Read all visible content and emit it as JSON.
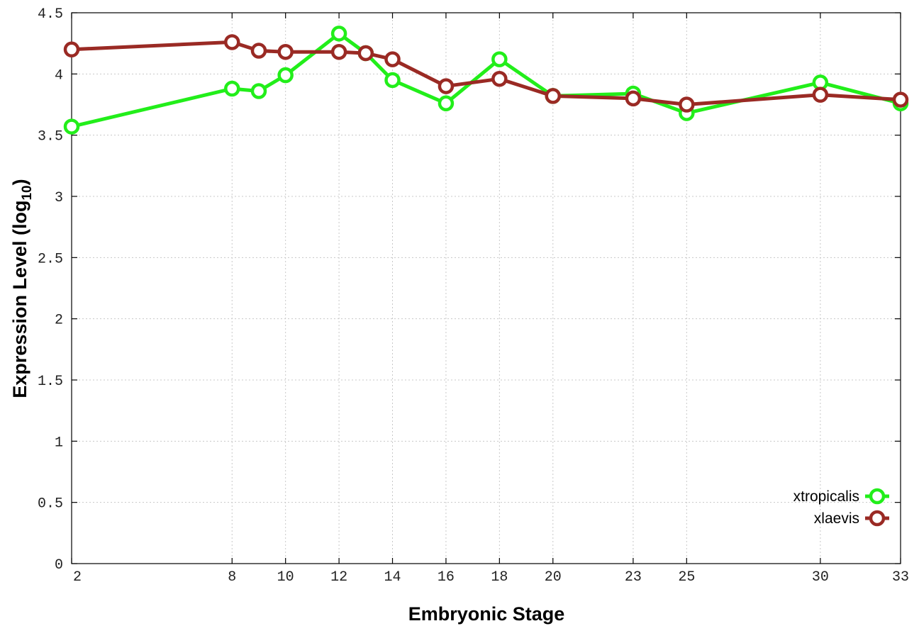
{
  "chart_data": {
    "type": "line",
    "xlabel": "Embryonic Stage",
    "ylabel": "Expression Level (log",
    "ylabel_subscript": "10",
    "ylabel_suffix": ")",
    "x": [
      2,
      8,
      9,
      10,
      12,
      13,
      14,
      16,
      18,
      20,
      23,
      25,
      30,
      33
    ],
    "xticks": [
      2,
      8,
      10,
      12,
      14,
      16,
      18,
      20,
      23,
      25,
      30,
      33
    ],
    "xlim": [
      2,
      33
    ],
    "yticks": [
      "0",
      "0.5",
      "1",
      "1.5",
      "2",
      "2.5",
      "3",
      "3.5",
      "4",
      "4.5"
    ],
    "ylim": [
      0,
      4.5
    ],
    "grid": true,
    "legend_position": "bottom-right",
    "series": [
      {
        "name": "xtropicalis",
        "color": "#22ee1a",
        "values": [
          3.57,
          3.88,
          3.86,
          3.99,
          4.33,
          4.17,
          3.95,
          3.76,
          4.12,
          3.82,
          3.84,
          3.68,
          3.93,
          3.76
        ]
      },
      {
        "name": "xlaevis",
        "color": "#9a2a24",
        "values": [
          4.2,
          4.26,
          4.19,
          4.18,
          4.18,
          4.17,
          4.12,
          3.9,
          3.96,
          3.82,
          3.8,
          3.75,
          3.83,
          3.79
        ]
      }
    ]
  }
}
